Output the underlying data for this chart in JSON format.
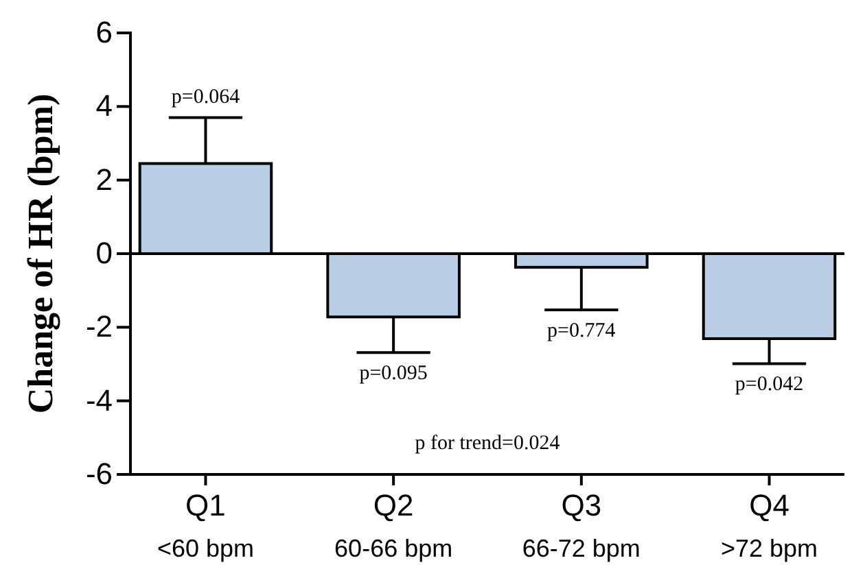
{
  "chart_data": {
    "type": "bar",
    "ylabel": "Change of HR (bpm)",
    "categories": [
      "Q1\n<60 bpm",
      "Q2\n60-66 bpm",
      "Q3\n66-72 bpm",
      "Q4\n>72 bpm"
    ],
    "values": [
      2.45,
      -1.72,
      -0.37,
      -2.31
    ],
    "errors": [
      [
        2.45,
        3.7
      ],
      [
        -2.69,
        -1.72
      ],
      [
        -1.53,
        -0.37
      ],
      [
        -2.99,
        -2.31
      ]
    ],
    "color": "#b9cde5",
    "ylim": [
      -6,
      6
    ],
    "yticks": [
      -6,
      -4,
      -2,
      0,
      2,
      4,
      6
    ],
    "annotations": [
      {
        "text": "p=0.064",
        "x": "Q1\n<60 bpm",
        "y": 3.7
      },
      {
        "text": "p=0.095",
        "x": "Q2\n60-66 bpm",
        "y": -2.69
      },
      {
        "text": "p=0.774",
        "x": "Q3\n66-72 bpm",
        "y": -1.53
      },
      {
        "text": "p=0.042",
        "x": "Q4\n>72 bpm",
        "y": -2.99
      },
      "p for trend=0.024"
    ]
  }
}
